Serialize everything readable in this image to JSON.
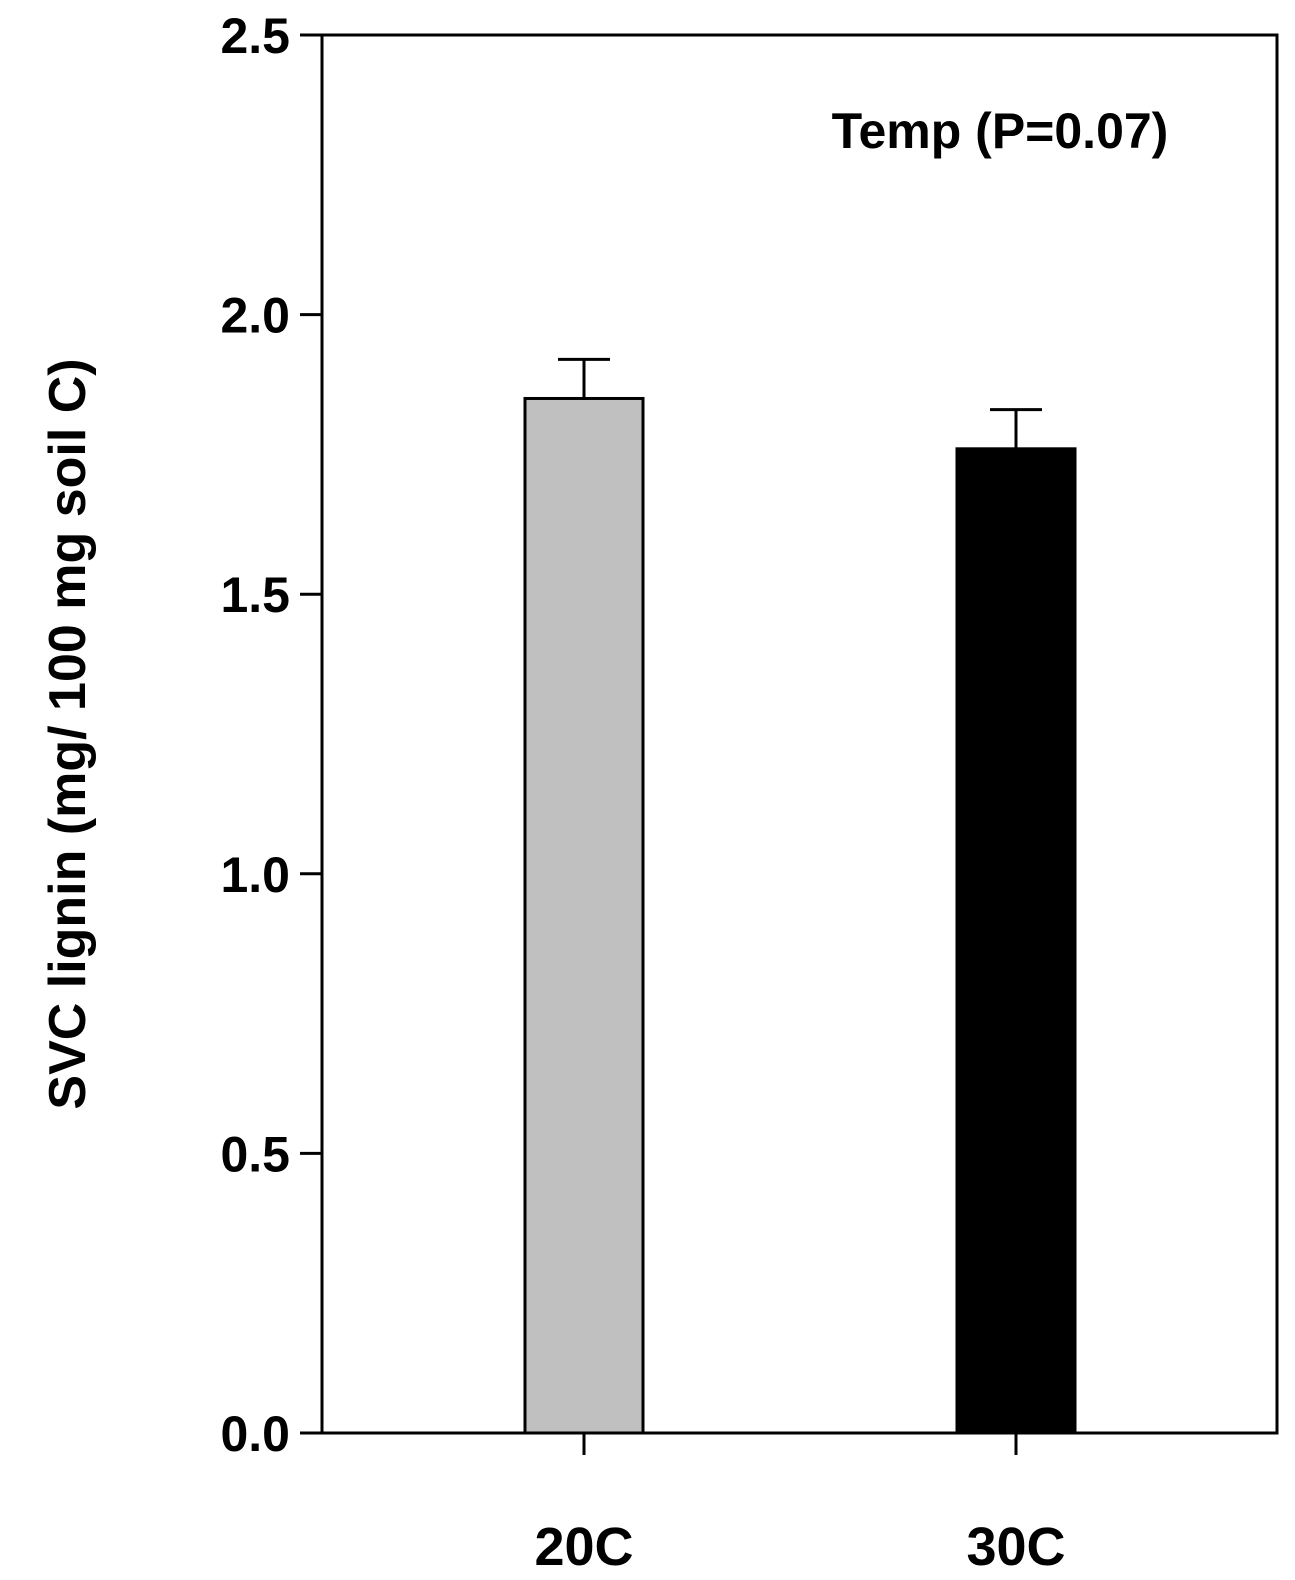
{
  "chart_data": {
    "type": "bar",
    "categories": [
      "20C",
      "30C"
    ],
    "values": [
      1.85,
      1.76
    ],
    "errors": [
      0.07,
      0.07
    ],
    "colors": [
      "#c0c0c0",
      "#000000"
    ],
    "ylabel": "SVC lignin (mg/ 100 mg soil C)",
    "xlabel": "",
    "ylim": [
      0,
      2.5
    ],
    "yticks": [
      0.0,
      0.5,
      1.0,
      1.5,
      2.0,
      2.5
    ],
    "ytick_labels": [
      "0.0",
      "0.5",
      "1.0",
      "1.5",
      "2.0",
      "2.5"
    ],
    "annotation": "Temp (P=0.07)",
    "grid": false,
    "legend": "none"
  }
}
